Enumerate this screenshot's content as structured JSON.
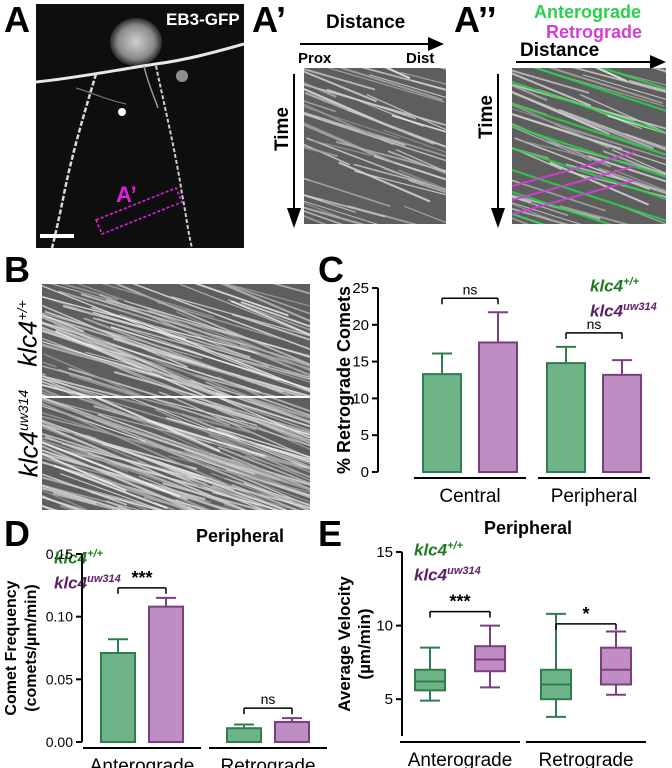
{
  "panels": {
    "A": {
      "letter": "A",
      "overlay_label": "EB3-GFP",
      "roi_label": "A’"
    },
    "A1": {
      "letter": "A’",
      "x_header": "Distance",
      "prox": "Prox",
      "dist": "Dist",
      "y_header": "Time"
    },
    "A2": {
      "letter": "A’’",
      "legend_antero": "Anterograde",
      "legend_retro": "Retrograde",
      "x_header": "Distance",
      "y_header": "Time"
    },
    "B": {
      "letter": "B",
      "row1_gene": "klc4",
      "row1_sup": "+/+",
      "row2_gene": "klc4",
      "row2_sup": "uw314"
    },
    "C": {
      "letter": "C"
    },
    "D": {
      "letter": "D"
    },
    "E": {
      "letter": "E"
    }
  },
  "legend": {
    "gene": "klc4",
    "wt_sup": "+/+",
    "mut_sup": "uw314",
    "wt_color": "#1f7a1f",
    "mut_color": "#5b1f66"
  },
  "colors": {
    "wt_fill": "#6fb389",
    "wt_stroke": "#2f7d4f",
    "mut_fill": "#c08cc4",
    "mut_stroke": "#7a3f80",
    "anterograde_line": "#2bd14a",
    "retrograde_line": "#d23fd6",
    "roi": "#e020e0"
  },
  "chart_data": [
    {
      "id": "C",
      "type": "bar",
      "ylabel": "% Retrograde Comets",
      "ylim": [
        0,
        25
      ],
      "yticks": [
        0,
        5,
        10,
        15,
        20,
        25
      ],
      "groups": [
        "Central",
        "Peripheral"
      ],
      "series": [
        {
          "name": "klc4+/+",
          "values": [
            13.3,
            14.8
          ],
          "errors": [
            2.8,
            2.2
          ]
        },
        {
          "name": "klc4uw314",
          "values": [
            17.6,
            13.2
          ],
          "errors": [
            4.1,
            2.0
          ]
        }
      ],
      "significance": [
        "ns",
        "ns"
      ],
      "legend_position": "top-right"
    },
    {
      "id": "D",
      "type": "bar",
      "title": "Peripheral",
      "ylabel": "Comet Frequency",
      "ylabel2": "(comets/µm/min)",
      "ylim": [
        0,
        0.15
      ],
      "yticks": [
        0.0,
        0.05,
        0.1,
        0.15
      ],
      "ytick_labels": [
        "0.00",
        "0.05",
        "0.10",
        "0.15"
      ],
      "groups": [
        "Anterograde",
        "Retrograde"
      ],
      "series": [
        {
          "name": "klc4+/+",
          "values": [
            0.071,
            0.011
          ],
          "errors": [
            0.011,
            0.003
          ]
        },
        {
          "name": "klc4uw314",
          "values": [
            0.108,
            0.016
          ],
          "errors": [
            0.007,
            0.003
          ]
        }
      ],
      "significance": [
        "***",
        "ns"
      ],
      "legend_position": "top-left"
    },
    {
      "id": "E",
      "type": "box",
      "title": "Peripheral",
      "ylabel": "Average  Velocity",
      "ylabel2": "(µm/min)",
      "ylim": [
        2.5,
        15
      ],
      "yticks": [
        5,
        10,
        15
      ],
      "groups": [
        "Anterograde",
        "Retrograde"
      ],
      "series": [
        {
          "name": "klc4+/+",
          "boxes": [
            {
              "min": 4.9,
              "q1": 5.6,
              "median": 6.2,
              "q3": 7.0,
              "max": 8.5
            },
            {
              "min": 3.8,
              "q1": 5.0,
              "median": 6.0,
              "q3": 7.0,
              "max": 10.8
            }
          ]
        },
        {
          "name": "klc4uw314",
          "boxes": [
            {
              "min": 5.8,
              "q1": 6.9,
              "median": 7.7,
              "q3": 8.6,
              "max": 10.0
            },
            {
              "min": 5.3,
              "q1": 6.0,
              "median": 7.0,
              "q3": 8.5,
              "max": 9.6
            }
          ]
        }
      ],
      "significance": [
        "***",
        "*"
      ],
      "legend_position": "top-left"
    }
  ]
}
